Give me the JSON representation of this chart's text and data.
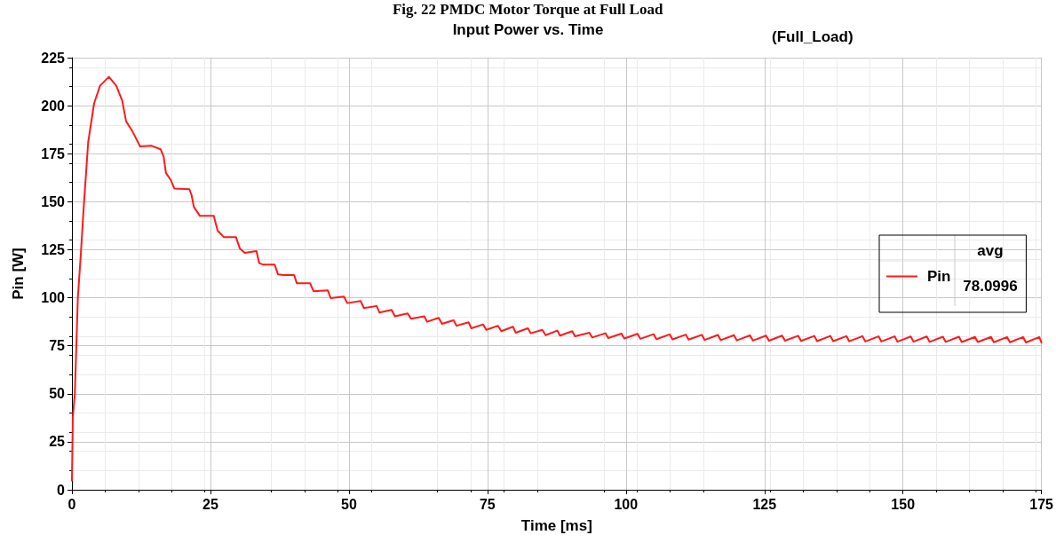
{
  "chart_data": {
    "type": "line",
    "title": "Input Power vs. Time",
    "subtitle": "(Full_Load)",
    "xlabel": "Time [ms]",
    "ylabel": "Pin [W]",
    "annotations": [
      "Fig. 22 PMDC Motor Torque at Full Load",
      "avg",
      "78.0996"
    ],
    "xlim": [
      0,
      175
    ],
    "xticks": [
      0,
      25,
      50,
      75,
      100,
      125,
      150,
      175
    ],
    "ylim": [
      0,
      225
    ],
    "yticks": [
      0,
      25,
      50,
      75,
      100,
      125,
      150,
      175,
      200,
      225
    ],
    "grid": true,
    "legend": "right",
    "marker": "none",
    "line_style": "solid",
    "series": [
      {
        "name": "Pin",
        "color": "#ff1a1a",
        "x": [
          0,
          0.16,
          0.53,
          1.06,
          1.6,
          2.13,
          2.93,
          4.0,
          5.07,
          6.67,
          8.0,
          9.07,
          9.77,
          10.95,
          12.3,
          14.4,
          16.0,
          16.55,
          16.97,
          17.87,
          18.5,
          21.2,
          21.6,
          22.0,
          23.1,
          25.6,
          26.3,
          27.4,
          29.6,
          30.3,
          31.2,
          33.3,
          33.8,
          34.6,
          36.6,
          37.2,
          38.2,
          40.1,
          40.6,
          43.0,
          43.6,
          46.2,
          46.7,
          49.1,
          49.7,
          52.1,
          52.7,
          55.0,
          55.5,
          57.7,
          58.3,
          60.6,
          61.2,
          63.6,
          64.1,
          66.2,
          66.8,
          68.9,
          69.4,
          71.6,
          72.1,
          74.2,
          74.8,
          76.9,
          77.5,
          79.6,
          80.1,
          82.3,
          82.8,
          84.9,
          85.5,
          87.6,
          88.1,
          90.3,
          90.8,
          93.4,
          93.9,
          96.3,
          96.8,
          99.2,
          99.7,
          102.1,
          102.6,
          105.0,
          105.5,
          107.9,
          108.4,
          110.8,
          111.3,
          113.7,
          114.2,
          116.6,
          117.1,
          119.5,
          120.0,
          122.4,
          122.9,
          125.3,
          125.8,
          128.2,
          128.7,
          131.1,
          131.6,
          134.0,
          134.5,
          136.9,
          137.4,
          139.8,
          140.3,
          142.7,
          143.2,
          145.6,
          146.1,
          148.5,
          149.0,
          151.4,
          151.9,
          154.3,
          154.8,
          157.2,
          157.7,
          160.1,
          160.6,
          163.0,
          163.5,
          165.9,
          166.4,
          168.8,
          169.3,
          171.7,
          172.2,
          174.6,
          175.0
        ],
        "values": [
          4.8,
          37.9,
          50.2,
          99.5,
          122.6,
          147.3,
          181,
          201.2,
          210.4,
          215.0,
          210.4,
          202.7,
          191.9,
          186.5,
          178.8,
          179.1,
          177.3,
          173.4,
          165,
          161.1,
          156.8,
          156.5,
          153.4,
          147.3,
          142.6,
          142.6,
          134.9,
          131.6,
          131.6,
          125.7,
          123.4,
          124.3,
          118,
          117.2,
          117.2,
          112.1,
          111.8,
          111.8,
          107.5,
          107.5,
          103.4,
          103.8,
          99.8,
          100.6,
          97.2,
          98.3,
          94.6,
          95.7,
          92.3,
          93.7,
          90.3,
          91.8,
          89.1,
          90.3,
          87.5,
          89.5,
          86.4,
          88.3,
          85.4,
          87.2,
          84.1,
          86.1,
          83.3,
          85.4,
          82.6,
          84.9,
          81.8,
          84.1,
          81.5,
          83.3,
          80.5,
          82.9,
          80.3,
          82.6,
          79.9,
          81.8,
          79.3,
          81.5,
          79.0,
          81.3,
          78.8,
          81.2,
          78.6,
          81.0,
          78.4,
          80.9,
          78.3,
          80.8,
          78.2,
          80.7,
          78.0,
          80.6,
          77.9,
          80.5,
          77.8,
          80.4,
          77.7,
          80.3,
          77.6,
          80.3,
          77.6,
          80.2,
          77.5,
          80.1,
          77.4,
          80.1,
          77.4,
          80.0,
          77.3,
          80.0,
          77.2,
          79.9,
          77.2,
          79.9,
          77.1,
          79.8,
          77.1,
          79.8,
          77.0,
          79.7,
          77.0,
          79.7,
          76.9,
          79.6,
          76.9,
          79.6,
          76.8,
          79.5,
          76.8,
          79.5,
          76.7,
          79.5,
          76.6
        ]
      }
    ]
  }
}
